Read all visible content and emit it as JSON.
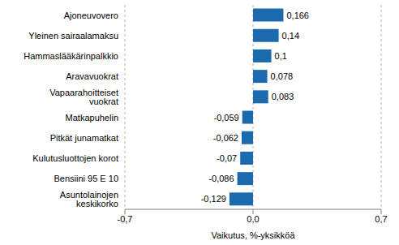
{
  "chart_data": {
    "type": "bar",
    "orientation": "horizontal",
    "x_label": "Vaikutus, %-yksikköä",
    "categories": [
      "Ajoneuvovero",
      "Yleinen sairaalamaksu",
      "Hammaslääkärinpalkkio",
      "Aravavuokrat",
      "Vapaarahoitteiset vuokrat",
      "Matkapuhelin",
      "Pitkät junamatkat",
      "Kulutusluottojen korot",
      "Bensiini 95 E 10",
      "Asuntolainojen keskikorko"
    ],
    "values": [
      0.166,
      0.14,
      0.1,
      0.078,
      0.083,
      -0.059,
      -0.062,
      -0.07,
      -0.086,
      -0.129
    ],
    "value_labels": [
      "0,166",
      "0,14",
      "0,1",
      "0,078",
      "0,083",
      "-0,059",
      "-0,062",
      "-0,07",
      "-0,086",
      "-0,129"
    ],
    "data_labels": true,
    "color": "#1a6aad",
    "xlim": [
      -0.7,
      0.7
    ],
    "xticks": [
      {
        "value": -0.7,
        "label": "-0,7"
      },
      {
        "value": 0,
        "label": "0,0"
      },
      {
        "value": 0.7,
        "label": "0,7"
      }
    ],
    "grid": true
  }
}
